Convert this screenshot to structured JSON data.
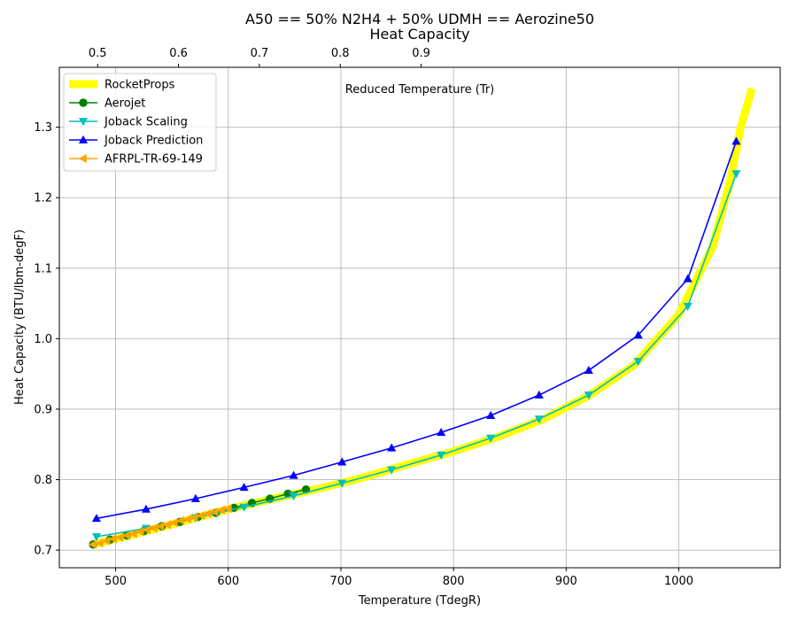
{
  "chart_data": {
    "type": "line",
    "title": "A50 == 50% N2H4 + 50% UDMH == Aerozine50",
    "subtitle": "Heat Capacity",
    "xlabel": "Temperature (TdegR)",
    "ylabel": "Heat Capacity (BTU/lbm-degF)",
    "annotation": "Reduced Temperature (Tr)",
    "xlim": [
      450,
      1090
    ],
    "ylim": [
      0.675,
      1.385
    ],
    "x_ticks": [
      500,
      600,
      700,
      800,
      900,
      1000
    ],
    "y_ticks": [
      0.7,
      0.8,
      0.9,
      1.0,
      1.1,
      1.2,
      1.3
    ],
    "top_axis": {
      "ticks": [
        0.5,
        0.6,
        0.7,
        0.8,
        0.9
      ],
      "tr_per_degR": 0.0013927,
      "x_of_tr_zero": 125
    },
    "grid": true,
    "legend_position": "upper-left",
    "series": [
      {
        "name": "RocketProps",
        "color": "#ffff00",
        "marker": "none",
        "line": "thick",
        "x": [
          480,
          520,
          560,
          600,
          640,
          680,
          720,
          760,
          800,
          840,
          880,
          920,
          960,
          1000,
          1030,
          1045,
          1055,
          1065
        ],
        "y": [
          0.708,
          0.724,
          0.741,
          0.758,
          0.773,
          0.787,
          0.803,
          0.822,
          0.84,
          0.861,
          0.886,
          0.919,
          0.962,
          1.034,
          1.13,
          1.22,
          1.3,
          1.355
        ]
      },
      {
        "name": "Aerojet",
        "color": "#008000",
        "marker": "circle",
        "line": "normal",
        "x": [
          480,
          495,
          510,
          525,
          541,
          557,
          573,
          589,
          605,
          621,
          637,
          653,
          669
        ],
        "y": [
          0.708,
          0.715,
          0.721,
          0.727,
          0.734,
          0.74,
          0.747,
          0.753,
          0.76,
          0.767,
          0.773,
          0.78,
          0.786
        ]
      },
      {
        "name": "Joback Scaling",
        "color": "#00bfbf",
        "marker": "triangle-down",
        "line": "normal",
        "x": [
          483,
          527,
          571,
          614,
          658,
          701,
          745,
          789,
          833,
          876,
          920,
          964,
          1008,
          1051
        ],
        "y": [
          0.719,
          0.731,
          0.746,
          0.761,
          0.777,
          0.795,
          0.814,
          0.835,
          0.859,
          0.886,
          0.92,
          0.968,
          1.046,
          1.234
        ]
      },
      {
        "name": "Joback Prediction",
        "color": "#0000ff",
        "marker": "triangle-up",
        "line": "normal",
        "x": [
          483,
          527,
          571,
          614,
          658,
          701,
          745,
          789,
          833,
          876,
          920,
          964,
          1008,
          1051
        ],
        "y": [
          0.745,
          0.758,
          0.773,
          0.789,
          0.806,
          0.825,
          0.845,
          0.867,
          0.891,
          0.92,
          0.955,
          1.005,
          1.085,
          1.28
        ]
      },
      {
        "name": "AFRPL-TR-69-149",
        "color": "#ffa500",
        "marker": "triangle-left",
        "line": "normal",
        "x": [
          480,
          486,
          492,
          498,
          504,
          510,
          516,
          522,
          528,
          534,
          540,
          546,
          552,
          558,
          564,
          570,
          576,
          582,
          588,
          594,
          600
        ],
        "y": [
          0.708,
          0.71,
          0.713,
          0.716,
          0.718,
          0.721,
          0.723,
          0.726,
          0.729,
          0.731,
          0.734,
          0.736,
          0.739,
          0.742,
          0.744,
          0.747,
          0.749,
          0.752,
          0.754,
          0.757,
          0.759
        ]
      }
    ]
  }
}
